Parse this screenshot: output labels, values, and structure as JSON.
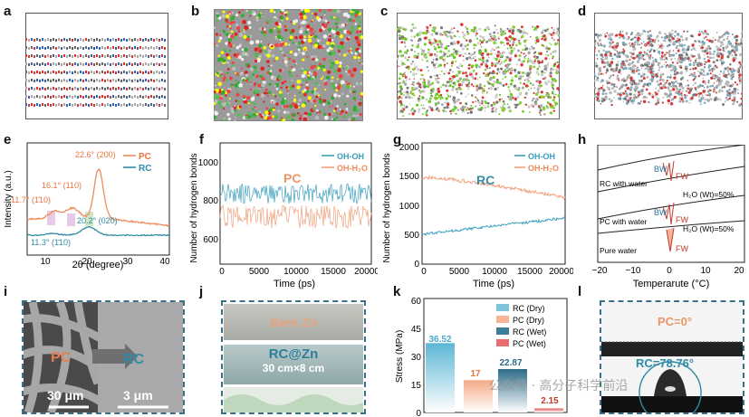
{
  "panels": {
    "a": "a",
    "b": "b",
    "c": "c",
    "d": "d",
    "e": "e",
    "f": "f",
    "g": "g",
    "h": "h",
    "i": "i",
    "j": "j",
    "k": "k",
    "l": "l"
  },
  "colors": {
    "pc": "#f08a5d",
    "rc": "#2f8aa6",
    "teal_label": "#3a8ea8",
    "orange_label": "#e8966a"
  },
  "e": {
    "ylabel": "Intensity (a.u.)",
    "xlabel": "2θ (degree)",
    "ticks": [
      "10",
      "20",
      "30",
      "40"
    ],
    "legend": [
      "PC",
      "RC"
    ],
    "ann": [
      "22.6° (200)",
      "16.1° (110)",
      "11.7° (1̄10)",
      "20.2° (020)",
      "11.3° (1̄10)"
    ]
  },
  "f": {
    "ylabel": "Number of hydrogen bonds",
    "xlabel": "Time (ps)",
    "yticks": [
      "600",
      "800",
      "1000"
    ],
    "xticks": [
      "0",
      "5000",
      "10000",
      "15000",
      "20000"
    ],
    "tag": "PC",
    "legend": [
      "OH-OH",
      "OH-H₂O"
    ]
  },
  "g": {
    "ylabel": "Number of hydrogen bonds",
    "xlabel": "Time (ps)",
    "yticks": [
      "0",
      "500",
      "1000",
      "1500",
      "2000"
    ],
    "xticks": [
      "0",
      "5000",
      "10000",
      "15000",
      "20000"
    ],
    "tag": "RC",
    "legend": [
      "OH-OH",
      "OH-H₂O"
    ]
  },
  "h": {
    "xlabel": "Temperarute (°C)",
    "xticks": [
      "−20",
      "−10",
      "0",
      "10",
      "20"
    ],
    "row_labels": [
      "RC with water",
      "PC with water",
      "Pure water"
    ],
    "water": [
      "H₂O (Wt)=50%",
      "H₂O (Wt)=50%"
    ],
    "bw": [
      "BW",
      "BW"
    ],
    "fw": [
      "FW",
      "FW",
      "FW"
    ]
  },
  "i": {
    "pc": "PC",
    "rc": "RC",
    "scale1": "30 μm",
    "scale2": "3 μm"
  },
  "j": {
    "bare": "Bare Zn",
    "rczn": "RC@Zn",
    "size": "30 cm×8 cm"
  },
  "k": {
    "ylabel": "Stress (MPa)",
    "yticks": [
      "0",
      "15",
      "30",
      "45",
      "60"
    ],
    "legend": [
      "RC (Dry)",
      "PC (Dry)",
      "RC (Wet)",
      "PC (Wet)"
    ],
    "values": [
      36.52,
      17,
      22.87,
      2.15
    ],
    "labels": [
      "36.52",
      "17",
      "22.87",
      "2.15"
    ]
  },
  "l": {
    "pc": "PC=0°",
    "rc": "RC=78.76°"
  },
  "watermark": "公众号 · 高分子科学前沿"
}
